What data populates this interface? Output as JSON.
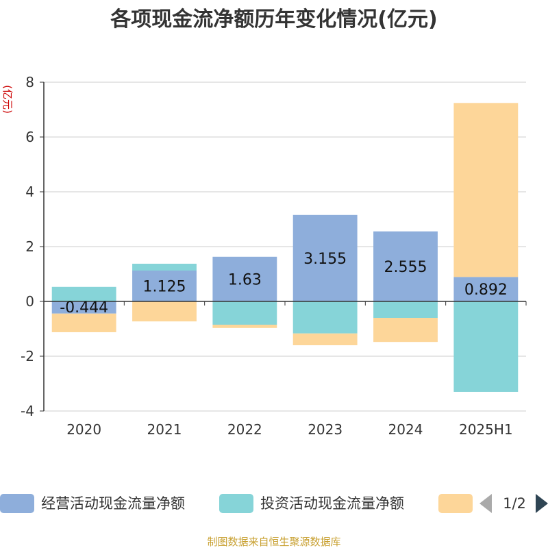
{
  "chart_data": {
    "type": "bar",
    "stacked": true,
    "title": "各项现金流净额历年变化情况(亿元)",
    "ylabel": "(亿元)",
    "categories": [
      "2020",
      "2021",
      "2022",
      "2023",
      "2024",
      "2025H1"
    ],
    "ylim": [
      -4,
      8
    ],
    "yticks": [
      8,
      6,
      4,
      2,
      0,
      -2,
      -4
    ],
    "grid": true,
    "legend_position": "bottom",
    "series": [
      {
        "name": "经营活动现金流量净额",
        "color": "#8eaedb",
        "values": [
          -0.444,
          1.125,
          1.63,
          3.155,
          2.555,
          0.892
        ],
        "data_labels": [
          "-0.444",
          "1.125",
          "1.63",
          "3.155",
          "2.555",
          "0.892"
        ]
      },
      {
        "name": "投资活动现金流量净额",
        "color": "#86d4d8",
        "values": [
          0.53,
          0.25,
          -0.85,
          -1.17,
          -0.6,
          -3.3
        ]
      },
      {
        "name": "",
        "color": "#fdd699",
        "values": [
          -0.68,
          -0.73,
          -0.12,
          -0.43,
          -0.88,
          6.35
        ]
      }
    ]
  },
  "legend": {
    "pager_text": "1/2",
    "prev_icon": "triangle-left-icon",
    "next_icon": "triangle-right-icon"
  },
  "source": "制图数据来自恒生聚源数据库",
  "colors": {
    "axis": "#333333",
    "grid": "#cccccc",
    "unit_label": "#cc0000",
    "source_text": "#c8a030",
    "pager_disabled": "#aaaaaa",
    "pager_active": "#2f4554"
  }
}
